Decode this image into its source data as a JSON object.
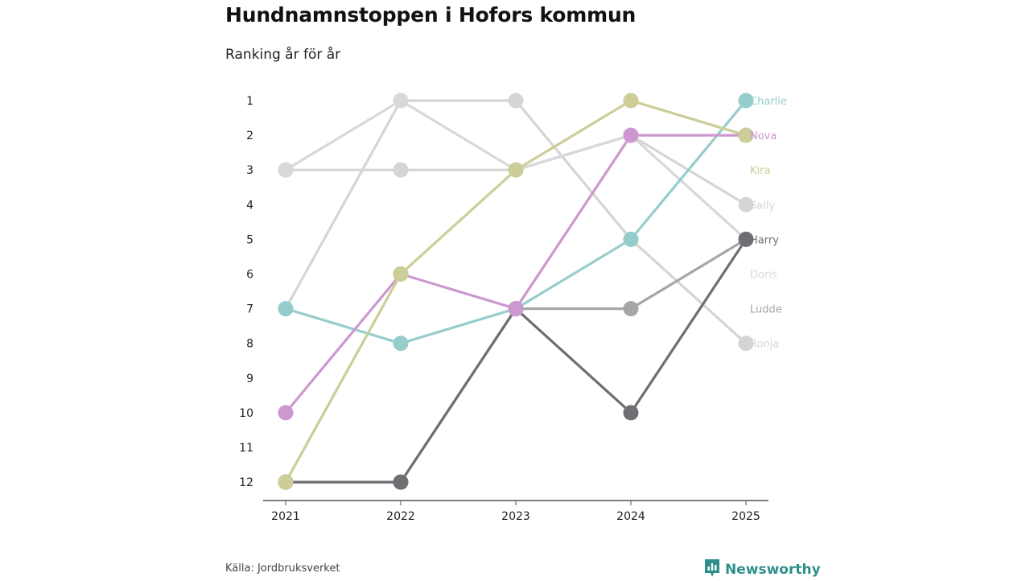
{
  "header": {
    "title": "Hundnamnstoppen i Hofors kommun",
    "subtitle": "Ranking år för år"
  },
  "footer": {
    "source": "Källa: Jordbruksverket",
    "brand": "Newsworthy",
    "brand_icon": "newsworthy-logo-icon"
  },
  "colors": {
    "Charlie": "#96cdcc",
    "Nova": "#cd98cf",
    "Kira": "#cdcd98",
    "Sally": "#d5d5d5",
    "Harry": "#6e6e73",
    "Doris": "#d8d8d8",
    "Ludde": "#a6a6a6",
    "Ronja": "#d5d5d5",
    "brand": "#2d8f8a",
    "axis": "#555555"
  },
  "chart_data": {
    "type": "line",
    "title": "Hundnamnstoppen i Hofors kommun",
    "subtitle": "Ranking år för år",
    "x": [
      "2021",
      "2022",
      "2023",
      "2024",
      "2025"
    ],
    "y_ticks": [
      "1",
      "2",
      "3",
      "4",
      "5",
      "6",
      "7",
      "8",
      "9",
      "10",
      "11",
      "12"
    ],
    "ylim": [
      1,
      12
    ],
    "y_reversed": true,
    "series": [
      {
        "name": "Sally",
        "values": [
          3,
          3,
          3,
          2,
          4
        ]
      },
      {
        "name": "Ronja",
        "values": [
          7,
          1,
          1,
          5,
          8
        ]
      },
      {
        "name": "Doris",
        "values": [
          3,
          1,
          3,
          2,
          5
        ]
      },
      {
        "name": "Ludde",
        "values": [
          12,
          12,
          7,
          7,
          5
        ]
      },
      {
        "name": "Harry",
        "values": [
          12,
          12,
          7,
          10,
          5
        ]
      },
      {
        "name": "Charlie",
        "values": [
          7,
          8,
          7,
          5,
          1
        ]
      },
      {
        "name": "Nova",
        "values": [
          10,
          6,
          7,
          2,
          2
        ]
      },
      {
        "name": "Kira",
        "values": [
          12,
          6,
          3,
          1,
          2
        ]
      }
    ],
    "legend": "right-end labels"
  }
}
